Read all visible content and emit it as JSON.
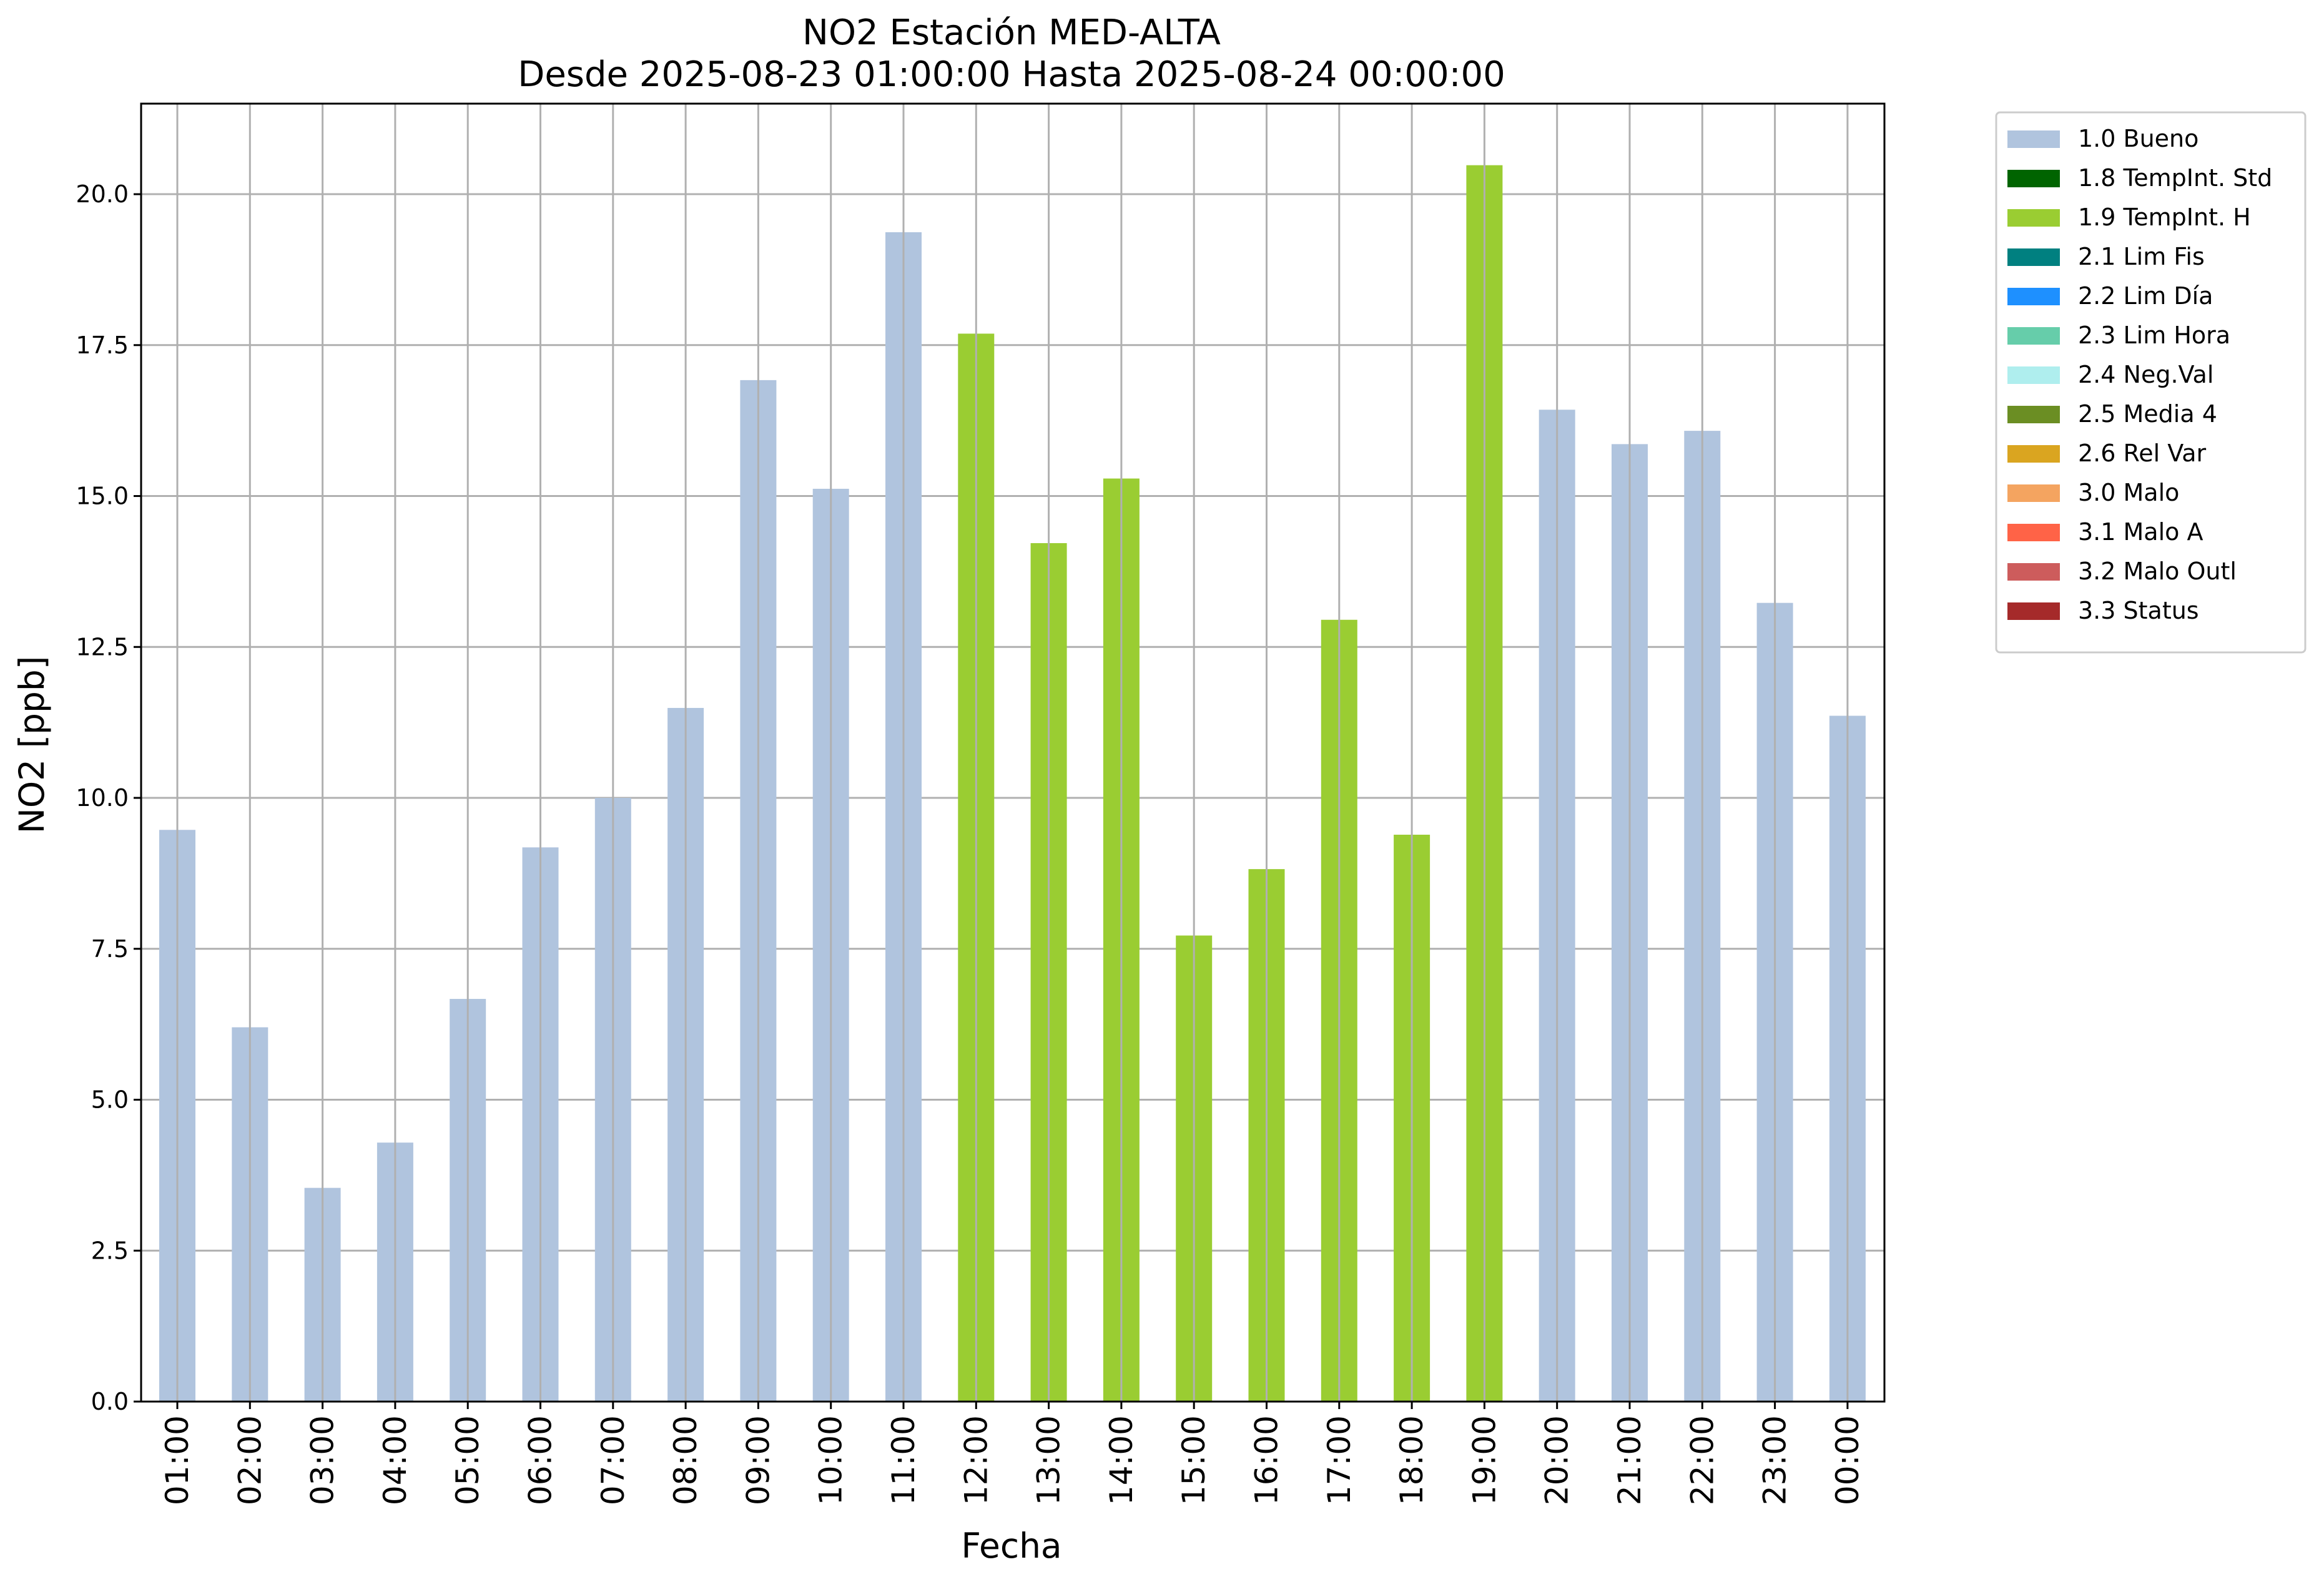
{
  "chart_data": {
    "type": "bar",
    "title": "NO2 Estación MED-ALTA",
    "subtitle": "Desde 2025-08-23 01:00:00 Hasta 2025-08-24 00:00:00",
    "xlabel": "Fecha",
    "ylabel": "NO2 [ppb]",
    "ylim": [
      0,
      21.5
    ],
    "yticks": [
      "0.0",
      "2.5",
      "5.0",
      "7.5",
      "10.0",
      "12.5",
      "15.0",
      "17.5",
      "20.0"
    ],
    "grid": true,
    "legend_position": "outside-top-right",
    "categories": [
      "01:00",
      "02:00",
      "03:00",
      "04:00",
      "05:00",
      "06:00",
      "07:00",
      "08:00",
      "09:00",
      "10:00",
      "11:00",
      "12:00",
      "13:00",
      "14:00",
      "15:00",
      "16:00",
      "17:00",
      "18:00",
      "19:00",
      "20:00",
      "21:00",
      "22:00",
      "23:00",
      "00:00"
    ],
    "values": [
      9.47,
      6.2,
      3.54,
      4.29,
      6.67,
      9.18,
      10.0,
      11.49,
      16.92,
      15.12,
      19.37,
      17.69,
      14.22,
      15.29,
      7.72,
      8.82,
      12.95,
      9.39,
      20.48,
      16.43,
      15.86,
      16.08,
      13.23,
      11.36
    ],
    "flags": [
      "1.0 Bueno",
      "1.0 Bueno",
      "1.0 Bueno",
      "1.0 Bueno",
      "1.0 Bueno",
      "1.0 Bueno",
      "1.0 Bueno",
      "1.0 Bueno",
      "1.0 Bueno",
      "1.0 Bueno",
      "1.0 Bueno",
      "1.9 TempInt. H",
      "1.9 TempInt. H",
      "1.9 TempInt. H",
      "1.9 TempInt. H",
      "1.9 TempInt. H",
      "1.9 TempInt. H",
      "1.9 TempInt. H",
      "1.9 TempInt. H",
      "1.0 Bueno",
      "1.0 Bueno",
      "1.0 Bueno",
      "1.0 Bueno",
      "1.0 Bueno"
    ],
    "legend": [
      {
        "label": "1.0 Bueno",
        "color": "#b0c4de"
      },
      {
        "label": "1.8 TempInt. Std",
        "color": "#006400"
      },
      {
        "label": "1.9 TempInt. H",
        "color": "#9acd32"
      },
      {
        "label": "2.1 Lim Fis",
        "color": "#008080"
      },
      {
        "label": "2.2 Lim Día",
        "color": "#1e90ff"
      },
      {
        "label": "2.3 Lim Hora",
        "color": "#66cdaa"
      },
      {
        "label": "2.4 Neg.Val",
        "color": "#afeeee"
      },
      {
        "label": "2.5 Media 4",
        "color": "#6b8e23"
      },
      {
        "label": "2.6 Rel Var",
        "color": "#daa520"
      },
      {
        "label": "3.0 Malo",
        "color": "#f4a460"
      },
      {
        "label": "3.1 Malo A",
        "color": "#ff6347"
      },
      {
        "label": "3.2 Malo Outl",
        "color": "#cd5c5c"
      },
      {
        "label": "3.3 Status",
        "color": "#a52a2a"
      }
    ]
  }
}
